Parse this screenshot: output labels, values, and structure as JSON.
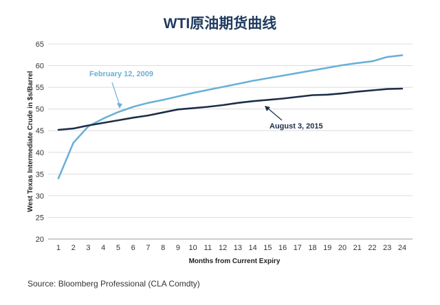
{
  "chart_data": {
    "type": "line",
    "title": "WTI原油期货曲线",
    "xlabel": "Months from Current Expiry",
    "ylabel": "West Texas Intermediate Crude in $s/Barrel",
    "x": [
      1,
      2,
      3,
      4,
      5,
      6,
      7,
      8,
      9,
      10,
      11,
      12,
      13,
      14,
      15,
      16,
      17,
      18,
      19,
      20,
      21,
      22,
      23,
      24
    ],
    "xticks": [
      "1",
      "2",
      "3",
      "4",
      "5",
      "6",
      "7",
      "8",
      "9",
      "10",
      "11",
      "12",
      "13",
      "14",
      "15",
      "16",
      "17",
      "18",
      "19",
      "20",
      "21",
      "22",
      "23",
      "24"
    ],
    "ylim": [
      20,
      65
    ],
    "yticks": [
      "20",
      "25",
      "30",
      "35",
      "40",
      "45",
      "50",
      "55",
      "60",
      "65"
    ],
    "grid": true,
    "series": [
      {
        "name": "February 12, 2009",
        "color": "#6ab0d8",
        "values": [
          34,
          42.2,
          46,
          47.8,
          49.3,
          50.5,
          51.4,
          52.1,
          52.9,
          53.7,
          54.4,
          55.1,
          55.8,
          56.5,
          57.1,
          57.7,
          58.3,
          58.9,
          59.5,
          60.1,
          60.6,
          61.0,
          62.0,
          62.4
        ]
      },
      {
        "name": "August 3, 2015",
        "color": "#1b2d47",
        "values": [
          45.2,
          45.5,
          46.2,
          46.8,
          47.4,
          48.0,
          48.5,
          49.2,
          49.9,
          50.2,
          50.5,
          50.9,
          51.4,
          51.8,
          52.1,
          52.4,
          52.8,
          53.2,
          53.3,
          53.6,
          54.0,
          54.3,
          54.6,
          54.7
        ]
      }
    ]
  },
  "source": "Source: Bloomberg Professional (CLA Comdty)"
}
